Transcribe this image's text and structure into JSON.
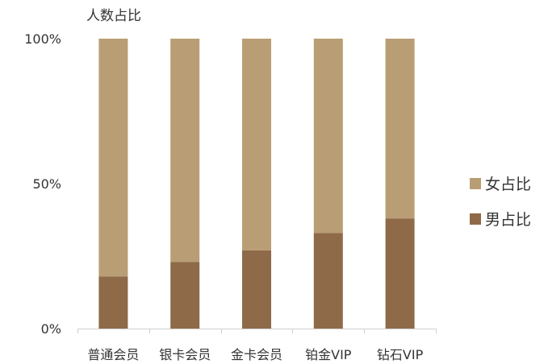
{
  "chart_data": {
    "type": "bar",
    "stacked": true,
    "title": "人数占比",
    "categories": [
      "普通会员",
      "银卡会员",
      "金卡会员",
      "铂金VIP",
      "钻石VIP"
    ],
    "series": [
      {
        "name": "男占比",
        "values": [
          18,
          23,
          27,
          33,
          38
        ],
        "color": "#8e6a49"
      },
      {
        "name": "女占比",
        "values": [
          82,
          77,
          73,
          67,
          62
        ],
        "color": "#b99d74"
      }
    ],
    "y_ticks": [
      {
        "value": 0,
        "label": "0%"
      },
      {
        "value": 50,
        "label": "50%"
      },
      {
        "value": 100,
        "label": "100%"
      }
    ],
    "ylim": [
      0,
      100
    ],
    "legend_position": "right",
    "legend_order": [
      "女占比",
      "男占比"
    ],
    "grid": false,
    "axis_color": "#d0d0d0"
  }
}
